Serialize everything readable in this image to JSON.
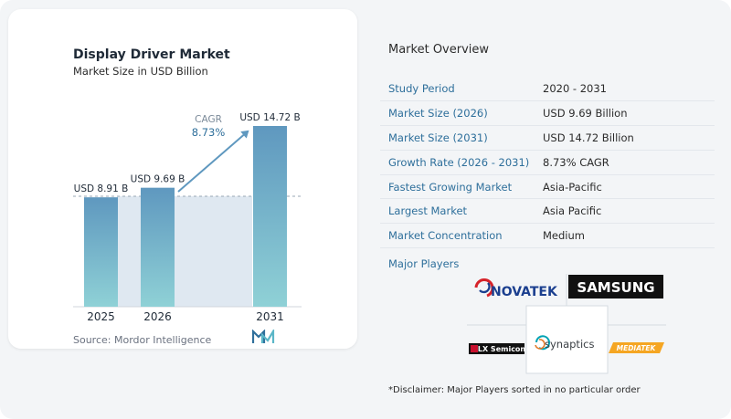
{
  "chart_card": {
    "title": "Display Driver Market",
    "subtitle": "Market Size in USD Billion",
    "source": "Source:  Mordor Intelligence",
    "cagr_label": "CAGR",
    "cagr_value": "8.73%"
  },
  "chart_data": {
    "type": "bar",
    "categories": [
      "2025",
      "2026",
      "2031"
    ],
    "values": [
      8.91,
      9.69,
      14.72
    ],
    "data_labels": [
      "USD 8.91 B",
      "USD 9.69 B",
      "USD 14.72 B"
    ],
    "title": "Display Driver Market",
    "subtitle": "Market Size in USD Billion",
    "xlabel": "",
    "ylabel": "",
    "ylim": [
      0,
      14.72
    ],
    "grid": false,
    "annotation": "CAGR 8.73%"
  },
  "overview": {
    "title": "Market Overview",
    "rows": [
      {
        "label": "Study Period",
        "value": "2020 - 2031"
      },
      {
        "label": "Market Size (2026)",
        "value": "USD 9.69 Billion"
      },
      {
        "label": "Market Size (2031)",
        "value": "USD 14.72 Billion"
      },
      {
        "label": "Growth Rate (2026 - 2031)",
        "value": "8.73% CAGR"
      },
      {
        "label": "Fastest Growing Market",
        "value": "Asia-Pacific"
      },
      {
        "label": "Largest Market",
        "value": "Asia Pacific"
      },
      {
        "label": "Market Concentration",
        "value": "Medium"
      }
    ],
    "players_label": "Major Players",
    "players": [
      "NOVATEK",
      "SAMSUNG",
      "LX Semicon",
      "synaptics",
      "MEDIATEK"
    ],
    "disclaimer": "*Disclaimer: Major Players sorted in no particular order"
  },
  "colors": {
    "bar_top": "#5f98bf",
    "bar_bottom": "#8fd1d6",
    "accent": "#2e6f9b",
    "arrow": "#5f98bf"
  }
}
